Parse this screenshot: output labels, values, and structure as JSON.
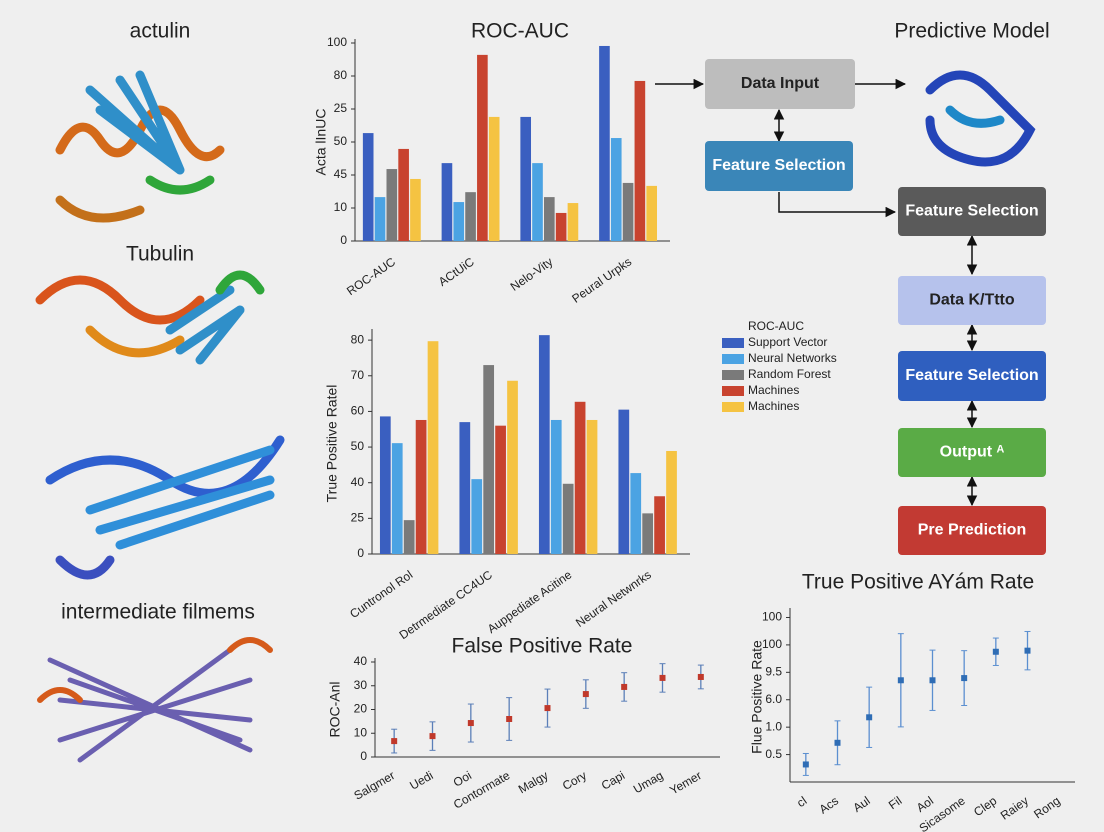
{
  "labels": [
    "actulin",
    "Tubulin",
    "intermediate filmems"
  ],
  "diagram": {
    "title": "Predictive Model",
    "nodes": [
      {
        "label": "Data Input",
        "color": "#bdbdbd"
      },
      {
        "label": "Feature Selection",
        "color": "#3a86b8"
      },
      {
        "label": "Feature Selection",
        "color": "#5a5a5a"
      },
      {
        "label": "Data K/Ttto",
        "color": "#b6c2ec"
      },
      {
        "label": "Feature Selection",
        "color": "#2f5fbf"
      },
      {
        "label": "Output ᴬ",
        "color": "#5aab46"
      },
      {
        "label": "Pre  Prediction",
        "color": "#c23a33"
      }
    ]
  },
  "chart_data": [
    {
      "type": "bar",
      "title": "ROC-AUC",
      "y_label": "Acta lInUC",
      "categories": [
        "ROC-AUC",
        "ACtUiC",
        "Nelo-Vity",
        "Peural Urpks"
      ],
      "series": [
        {
          "color": "#3a5fc0",
          "values": [
            3.27,
            2.36,
            3.76,
            5.91
          ]
        },
        {
          "color": "#4ba3e3",
          "values": [
            1.33,
            1.18,
            2.36,
            3.12
          ]
        },
        {
          "color": "#7a7a7a",
          "values": [
            2.18,
            1.48,
            1.33,
            1.76
          ]
        },
        {
          "color": "#c8432f",
          "values": [
            2.79,
            5.64,
            0.85,
            4.85
          ]
        },
        {
          "color": "#f5c342",
          "values": [
            1.88,
            3.76,
            1.15,
            1.67
          ]
        }
      ],
      "ylim": [
        0,
        6
      ],
      "yticks": [
        0,
        {
          "value": 1,
          "label": "10"
        },
        {
          "value": 2,
          "label": "45"
        },
        {
          "value": 3,
          "label": "50"
        },
        {
          "value": 4,
          "label": "25"
        },
        {
          "value": 5,
          "label": "80"
        },
        {
          "value": 6,
          "label": "100"
        }
      ]
    },
    {
      "type": "bar",
      "y_label": "True Positive Ratel",
      "legend_title": "ROC-AUC",
      "categories": [
        "Cuntronol Rol",
        "Detrmediate CC4UC",
        "Auppediate Acitine",
        "Neural Netwnrks"
      ],
      "series": [
        {
          "name": "Support Vector",
          "color": "#3a5fc0",
          "values": [
            3.86,
            3.7,
            6.14,
            4.05
          ]
        },
        {
          "name": "Neural Networks",
          "color": "#4ba3e3",
          "values": [
            3.11,
            2.1,
            3.76,
            2.27
          ]
        },
        {
          "name": "Random Forest",
          "color": "#7a7a7a",
          "values": [
            0.95,
            5.3,
            1.97,
            1.14
          ]
        },
        {
          "name": "Machines",
          "color": "#c8432f",
          "values": [
            3.76,
            3.6,
            4.27,
            1.62
          ]
        },
        {
          "name": "Machines",
          "color": "#f5c342",
          "values": [
            5.97,
            4.86,
            3.76,
            2.89
          ]
        }
      ],
      "ylim": [
        0,
        6.2
      ],
      "yticks": [
        0,
        {
          "value": 1,
          "label": "25"
        },
        {
          "value": 2,
          "label": "40"
        },
        {
          "value": 3,
          "label": "50"
        },
        {
          "value": 4,
          "label": "60"
        },
        {
          "value": 5,
          "label": "70"
        },
        {
          "value": 6,
          "label": "80"
        }
      ]
    },
    {
      "type": "errorbar",
      "title": "False Positive Rate",
      "y_label": "ROC-Anl",
      "categories": [
        "Salgmer",
        "Uedi",
        "Ooi",
        "Contormate",
        "Malgy",
        "Cory",
        "Capi",
        "Umag",
        "Yemer"
      ],
      "series": [
        {
          "color": "#c0392b",
          "error_color": "#5b7fb8",
          "values": [
            6.7,
            8.8,
            14.3,
            16,
            20.6,
            26.5,
            29.5,
            33.3,
            33.7
          ],
          "errors": [
            5,
            6,
            8,
            9,
            8,
            6,
            6,
            6,
            5
          ]
        }
      ],
      "ylim": [
        0,
        40
      ],
      "yticks": [
        0,
        10,
        20,
        30,
        40
      ]
    },
    {
      "type": "errorbar",
      "title": "True Positive AYám Rate",
      "y_label": "Flue Positive Rate",
      "categories": [
        "cl",
        "Acs",
        "Aul",
        "Fil",
        "Aol",
        "Sicasome",
        "Clep",
        "Raiey",
        "Rong"
      ],
      "series": [
        {
          "color": "#2f6db5",
          "error_color": "#5b8fd0",
          "values": [
            0.64,
            1.43,
            2.36,
            3.71,
            3.71,
            3.79,
            4.75,
            4.79,
            null
          ],
          "errors": [
            0.4,
            0.8,
            1.1,
            1.7,
            1.1,
            1.0,
            0.5,
            0.7,
            null
          ]
        }
      ],
      "ylim": [
        0,
        6.2
      ],
      "yticks": [
        {
          "value": 1,
          "label": "0.5"
        },
        {
          "value": 2,
          "label": "1.0"
        },
        {
          "value": 3,
          "label": "6.0"
        },
        {
          "value": 4,
          "label": "9.5"
        },
        {
          "value": 5,
          "label": "100"
        },
        {
          "value": 6,
          "label": "100"
        }
      ]
    }
  ]
}
